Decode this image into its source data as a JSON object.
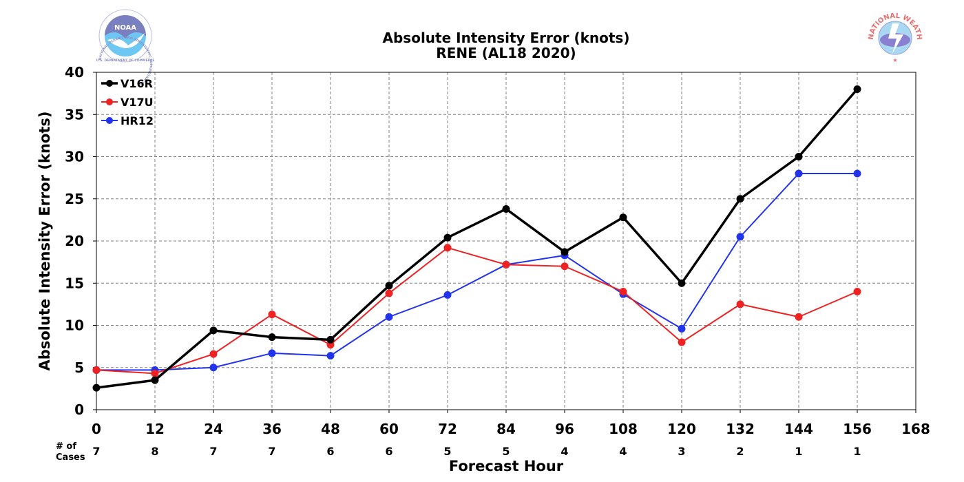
{
  "chart_data": {
    "type": "line",
    "title": [
      "Absolute Intensity Error (knots)",
      "RENE (AL18 2020)"
    ],
    "xlabel": "Forecast Hour",
    "ylabel": "Absolute Intensity Error (knots)",
    "xlim": [
      0,
      168
    ],
    "ylim": [
      0,
      40
    ],
    "x_ticks": [
      0,
      12,
      24,
      36,
      48,
      60,
      72,
      84,
      96,
      108,
      120,
      132,
      144,
      156,
      168
    ],
    "y_ticks": [
      0,
      5,
      10,
      15,
      20,
      25,
      30,
      35,
      40
    ],
    "grid": true,
    "legend_position": "top-left",
    "cases_label": [
      "# of",
      "Cases"
    ],
    "cases": [
      {
        "x": 0,
        "n": "7"
      },
      {
        "x": 12,
        "n": "8"
      },
      {
        "x": 24,
        "n": "7"
      },
      {
        "x": 36,
        "n": "7"
      },
      {
        "x": 48,
        "n": "6"
      },
      {
        "x": 60,
        "n": "6"
      },
      {
        "x": 72,
        "n": "5"
      },
      {
        "x": 84,
        "n": "5"
      },
      {
        "x": 96,
        "n": "4"
      },
      {
        "x": 108,
        "n": "4"
      },
      {
        "x": 120,
        "n": "3"
      },
      {
        "x": 132,
        "n": "2"
      },
      {
        "x": 144,
        "n": "1"
      },
      {
        "x": 156,
        "n": "1"
      }
    ],
    "x": [
      0,
      12,
      24,
      36,
      48,
      60,
      72,
      84,
      96,
      108,
      120,
      132,
      144,
      156
    ],
    "series": [
      {
        "name": "V16R",
        "color": "#000000",
        "values": [
          2.6,
          3.5,
          9.4,
          8.6,
          8.3,
          14.7,
          20.4,
          23.8,
          18.7,
          22.8,
          15.0,
          25.0,
          30.0,
          38.0
        ]
      },
      {
        "name": "V17U",
        "color": "#ee2222",
        "values": [
          4.7,
          4.3,
          6.6,
          11.3,
          7.7,
          13.8,
          19.2,
          17.2,
          17.0,
          14.0,
          8.0,
          12.5,
          11.0,
          14.0
        ]
      },
      {
        "name": "HR12",
        "color": "#2233ee",
        "values": [
          4.7,
          4.7,
          5.0,
          6.7,
          6.4,
          11.0,
          13.6,
          17.2,
          18.3,
          13.7,
          9.6,
          20.5,
          28.0,
          28.0
        ]
      }
    ]
  },
  "logos": {
    "noaa": {
      "wordmark": "NOAA",
      "ring_text": "NATIONAL OCEANIC AND ATMOSPHERIC ADMINISTRATION",
      "bottom_text": "U.S. DEPARTMENT OF COMMERCE"
    },
    "nws": {
      "ring_text": "NATIONAL WEATHER SERVICE"
    }
  }
}
